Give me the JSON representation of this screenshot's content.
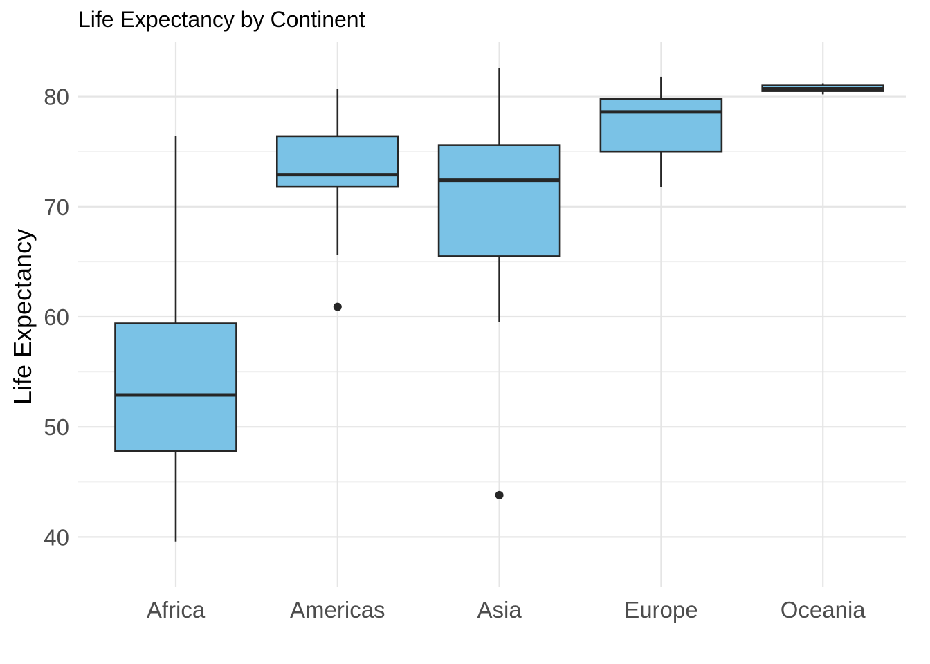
{
  "chart_data": {
    "type": "boxplot",
    "title": "Life Expectancy by Continent",
    "xlabel": "",
    "ylabel": "Life Expectancy",
    "ylim": [
      35.5,
      85
    ],
    "y_ticks": [
      "40",
      "50",
      "60",
      "70",
      "80"
    ],
    "y_tick_values": [
      40,
      50,
      60,
      70,
      80
    ],
    "grid": true,
    "legend": "none",
    "fill_color": "#7ac2e6",
    "categories": [
      "Africa",
      "Americas",
      "Asia",
      "Europe",
      "Oceania"
    ],
    "boxes": [
      {
        "category": "Africa",
        "min": 39.6,
        "q1": 47.8,
        "median": 52.9,
        "q3": 59.4,
        "max": 76.4,
        "outliers": []
      },
      {
        "category": "Americas",
        "min": 65.6,
        "q1": 71.8,
        "median": 72.9,
        "q3": 76.4,
        "max": 80.7,
        "outliers": [
          60.9
        ]
      },
      {
        "category": "Asia",
        "min": 59.5,
        "q1": 65.5,
        "median": 72.4,
        "q3": 75.6,
        "max": 82.6,
        "outliers": [
          43.8
        ]
      },
      {
        "category": "Europe",
        "min": 71.8,
        "q1": 75.0,
        "median": 78.6,
        "q3": 79.8,
        "max": 81.8,
        "outliers": []
      },
      {
        "category": "Oceania",
        "min": 80.2,
        "q1": 80.5,
        "median": 80.7,
        "q3": 81.0,
        "max": 81.2,
        "outliers": []
      }
    ]
  }
}
